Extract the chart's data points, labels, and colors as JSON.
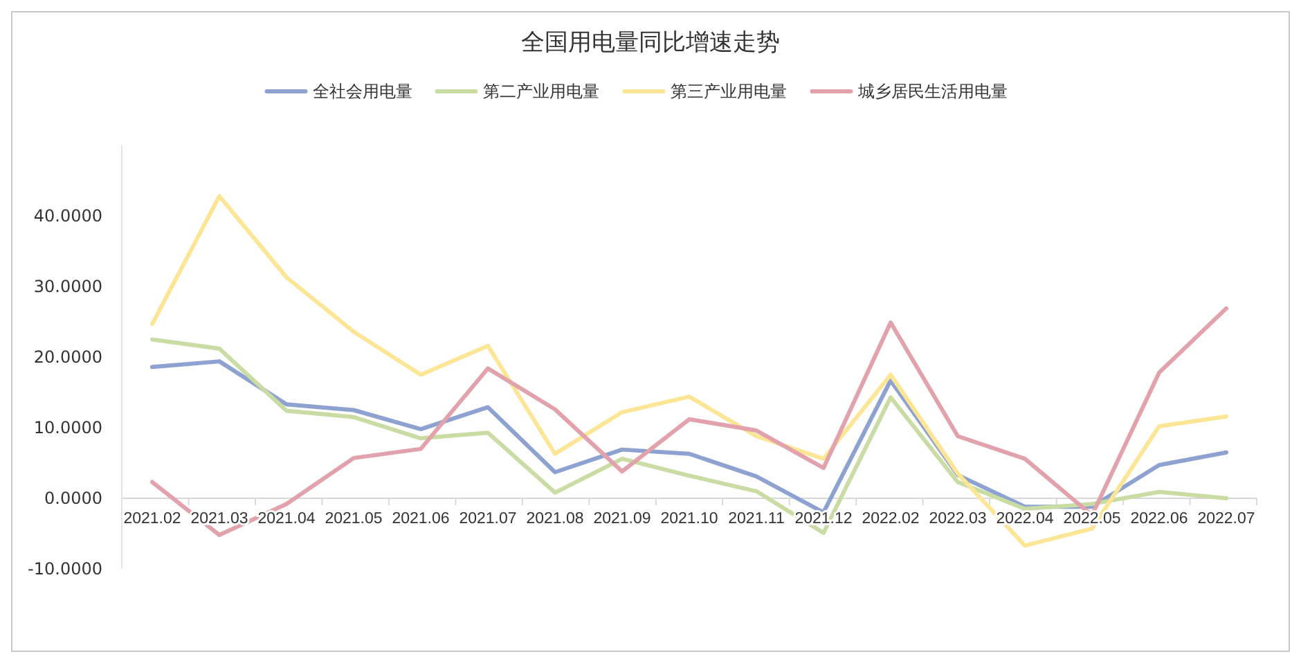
{
  "chart_data": {
    "type": "line",
    "title": "全国用电量同比增速走势",
    "categories": [
      "2021.02",
      "2021.03",
      "2021.04",
      "2021.05",
      "2021.06",
      "2021.07",
      "2021.08",
      "2021.09",
      "2021.10",
      "2021.11",
      "2021.12",
      "2022.02",
      "2022.03",
      "2022.04",
      "2022.05",
      "2022.06",
      "2022.07"
    ],
    "series": [
      {
        "name": "全社会用电量",
        "color": "#8da2d0",
        "values": [
          18.6,
          19.4,
          13.3,
          12.5,
          9.8,
          12.9,
          3.7,
          6.9,
          6.3,
          3.1,
          -2.0,
          16.7,
          3.3,
          -1.2,
          -1.2,
          4.7,
          6.5
        ]
      },
      {
        "name": "第二产业用电量",
        "color": "#c9dca3",
        "values": [
          22.5,
          21.2,
          12.4,
          11.5,
          8.5,
          9.3,
          0.8,
          5.6,
          3.2,
          1.0,
          -4.9,
          14.3,
          2.3,
          -1.5,
          -0.8,
          0.9,
          0.0
        ]
      },
      {
        "name": "第三产业用电量",
        "color": "#fde596",
        "values": [
          24.7,
          42.8,
          31.3,
          23.6,
          17.5,
          21.6,
          6.3,
          12.2,
          14.4,
          8.8,
          5.6,
          17.5,
          3.5,
          -6.7,
          -4.3,
          10.2,
          11.6
        ]
      },
      {
        "name": "城乡居民生活用电量",
        "color": "#e2a2ac",
        "values": [
          2.3,
          -5.2,
          -0.8,
          5.7,
          7.0,
          18.4,
          12.6,
          3.8,
          11.2,
          9.6,
          4.3,
          24.9,
          8.8,
          5.6,
          -2.4,
          17.8,
          26.9
        ]
      }
    ],
    "ylim": [
      -10,
      50
    ],
    "yticks": [
      {
        "value": -10,
        "label": "-10.0000"
      },
      {
        "value": 0,
        "label": "0.0000"
      },
      {
        "value": 10,
        "label": "10.0000"
      },
      {
        "value": 20,
        "label": "20.0000"
      },
      {
        "value": 30,
        "label": "30.0000"
      },
      {
        "value": 40,
        "label": "40.0000"
      }
    ],
    "grid": false,
    "legend": "top",
    "marker": "none",
    "line_style": "solid"
  }
}
